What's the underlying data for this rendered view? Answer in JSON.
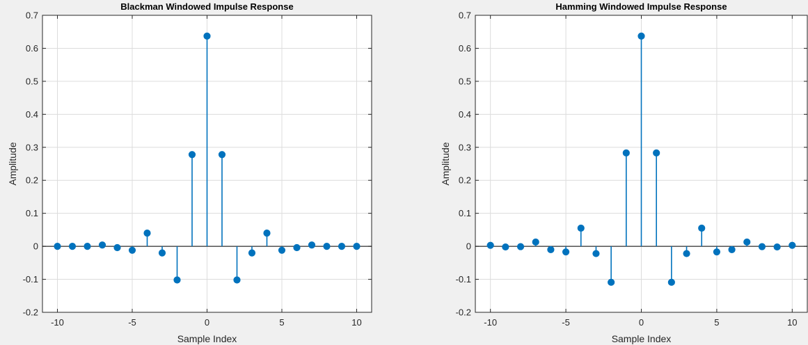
{
  "colors": {
    "series": "#0072bd",
    "background": "#f0f0f0",
    "plot_background": "#ffffff",
    "grid": "#dcdcdc",
    "axis": "#262626"
  },
  "chart_data": [
    {
      "type": "stem",
      "title": "Blackman Windowed Impulse Response",
      "xlabel": "Sample Index",
      "ylabel": "Amplitude",
      "xlim": [
        -11,
        11
      ],
      "ylim": [
        -0.2,
        0.7
      ],
      "xticks": [
        -10,
        -5,
        0,
        5,
        10
      ],
      "xtick_labels": [
        "-10",
        "-5",
        "0",
        "5",
        "10"
      ],
      "yticks": [
        -0.2,
        -0.1,
        0,
        0.1,
        0.2,
        0.3,
        0.4,
        0.5,
        0.6,
        0.7
      ],
      "ytick_labels": [
        "-0.2",
        "-0.1",
        "0",
        "0.1",
        "0.2",
        "0.3",
        "0.4",
        "0.5",
        "0.6",
        "0.7"
      ],
      "grid": true,
      "x": [
        -10,
        -9,
        -8,
        -7,
        -6,
        -5,
        -4,
        -3,
        -2,
        -1,
        0,
        1,
        2,
        3,
        4,
        5,
        6,
        7,
        8,
        9,
        10
      ],
      "y": [
        0.0,
        0.0,
        0.0,
        0.004,
        -0.004,
        -0.012,
        0.04,
        -0.02,
        -0.102,
        0.278,
        0.637,
        0.278,
        -0.102,
        -0.02,
        0.04,
        -0.012,
        -0.004,
        0.004,
        0.0,
        0.0,
        0.0
      ]
    },
    {
      "type": "stem",
      "title": "Hamming Windowed Impulse Response",
      "xlabel": "Sample Index",
      "ylabel": "Amplitude",
      "xlim": [
        -11,
        11
      ],
      "ylim": [
        -0.2,
        0.7
      ],
      "xticks": [
        -10,
        -5,
        0,
        5,
        10
      ],
      "xtick_labels": [
        "-10",
        "-5",
        "0",
        "5",
        "10"
      ],
      "yticks": [
        -0.2,
        -0.1,
        0,
        0.1,
        0.2,
        0.3,
        0.4,
        0.5,
        0.6,
        0.7
      ],
      "ytick_labels": [
        "-0.2",
        "-0.1",
        "0",
        "0.1",
        "0.2",
        "0.3",
        "0.4",
        "0.5",
        "0.6",
        "0.7"
      ],
      "grid": true,
      "x": [
        -10,
        -9,
        -8,
        -7,
        -6,
        -5,
        -4,
        -3,
        -2,
        -1,
        0,
        1,
        2,
        3,
        4,
        5,
        6,
        7,
        8,
        9,
        10
      ],
      "y": [
        0.003,
        -0.002,
        -0.001,
        0.013,
        -0.01,
        -0.017,
        0.055,
        -0.022,
        -0.109,
        0.283,
        0.637,
        0.283,
        -0.109,
        -0.022,
        0.055,
        -0.017,
        -0.01,
        0.013,
        -0.001,
        -0.002,
        0.003
      ]
    }
  ]
}
